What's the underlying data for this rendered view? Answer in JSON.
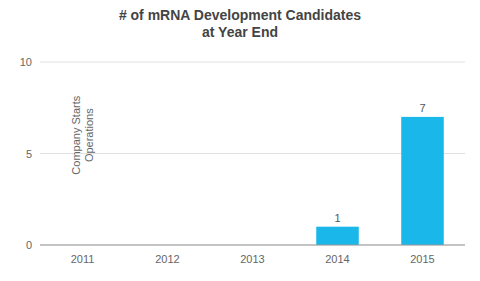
{
  "chart_data": {
    "type": "bar",
    "title": "# of mRNA Development Candidates\nat Year End",
    "categories": [
      "2011",
      "2012",
      "2013",
      "2014",
      "2015"
    ],
    "values": [
      0,
      0,
      0,
      1,
      7
    ],
    "color": "#1ab7ea",
    "ylim": [
      0,
      10
    ],
    "yticks": [
      0,
      5,
      10
    ],
    "grid": true,
    "data_labels": true,
    "annotations": [
      {
        "text": "Company Starts\nOperations",
        "x": "2011",
        "y": 6
      }
    ]
  }
}
